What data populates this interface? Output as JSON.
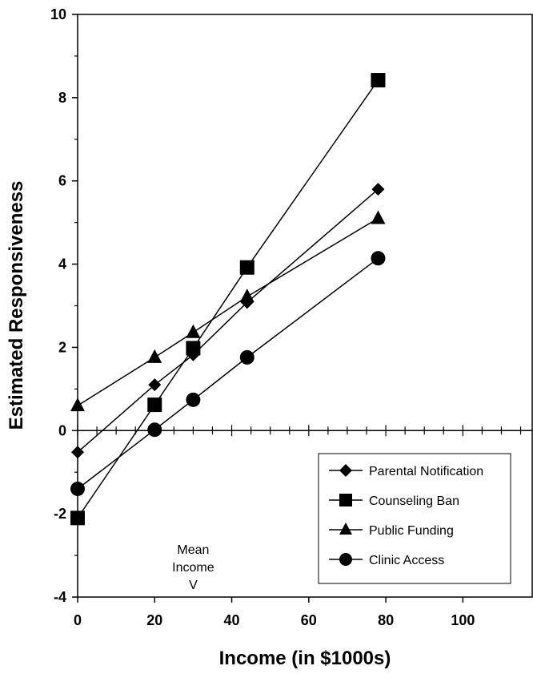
{
  "chart_data": {
    "type": "line",
    "title": "",
    "xlabel": "Income (in $1000s)",
    "ylabel": "Estimated Responsiveness",
    "xlim": [
      0,
      118
    ],
    "ylim": [
      -4,
      10
    ],
    "x_ticks": [
      "0",
      "20",
      "40",
      "60",
      "80",
      "100"
    ],
    "y_ticks": [
      "-4",
      "-2",
      "0",
      "2",
      "4",
      "6",
      "8",
      "10"
    ],
    "x_tick_values": [
      0,
      20,
      40,
      60,
      80,
      100
    ],
    "y_tick_values": [
      -4,
      -2,
      0,
      2,
      4,
      6,
      8,
      10
    ],
    "grid": false,
    "legend_position": "bottom-right",
    "annotation": {
      "lines": [
        "Mean",
        "Income",
        "V"
      ],
      "x": 30
    },
    "series": [
      {
        "name": "Parental Notification",
        "marker": "diamond",
        "x": [
          0,
          20,
          30,
          44,
          78
        ],
        "y": [
          -0.52,
          1.1,
          1.82,
          3.08,
          5.8
        ]
      },
      {
        "name": "Counseling Ban",
        "marker": "square",
        "x": [
          0,
          20,
          30,
          44,
          78
        ],
        "y": [
          -2.1,
          0.62,
          1.98,
          3.92,
          8.42
        ]
      },
      {
        "name": "Public Funding",
        "marker": "triangle",
        "x": [
          0,
          20,
          30,
          44,
          78
        ],
        "y": [
          0.6,
          1.76,
          2.36,
          3.22,
          5.1
        ]
      },
      {
        "name": "Clinic Access",
        "marker": "circle",
        "x": [
          0,
          20,
          30,
          44,
          78
        ],
        "y": [
          -1.4,
          0.02,
          0.74,
          1.76,
          4.14
        ]
      }
    ]
  }
}
